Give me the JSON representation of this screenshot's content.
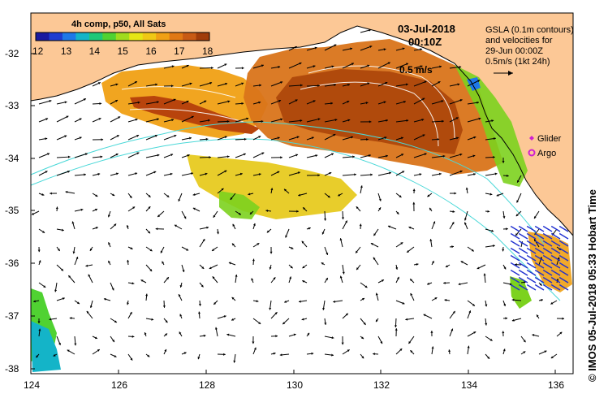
{
  "colorbar": {
    "title": "4h comp, p50, All Sats",
    "ticks": [
      "12",
      "13",
      "14",
      "15",
      "16",
      "17",
      "18"
    ],
    "colors": [
      "#1a1aa0",
      "#1e3cd0",
      "#1e78e8",
      "#14b4c8",
      "#1ec878",
      "#50d232",
      "#a0dc1e",
      "#e6e614",
      "#f0c814",
      "#f0a014",
      "#e07814",
      "#c85a14",
      "#a03c0a"
    ]
  },
  "timestamp": {
    "date": "03-Jul-2018",
    "time": "00:10Z"
  },
  "legend_note": {
    "line1": "GSLA (0.1m contours)",
    "line2": "and velocities for",
    "line3": "29-Jun 00:00Z",
    "line4": "0.5m/s (1kt 24h)"
  },
  "scale_label": "0.5 m/s",
  "markers": {
    "glider": "Glider",
    "argo": "Argo",
    "glider_color": "#d020d0",
    "argo_color": "#d020d0"
  },
  "credit": "© IMOS 05-Jul-2018 05:33 Hobart Time",
  "axes": {
    "x_ticks": [
      "124",
      "126",
      "128",
      "130",
      "132",
      "134",
      "136"
    ],
    "y_ticks": [
      "-32",
      "-33",
      "-34",
      "-35",
      "-36",
      "-37",
      "-38"
    ]
  },
  "colors": {
    "land": "#fcc896",
    "ocean": "#ffffff",
    "contour": "#4ad8d8",
    "gsla_contour": "#ffffff"
  }
}
